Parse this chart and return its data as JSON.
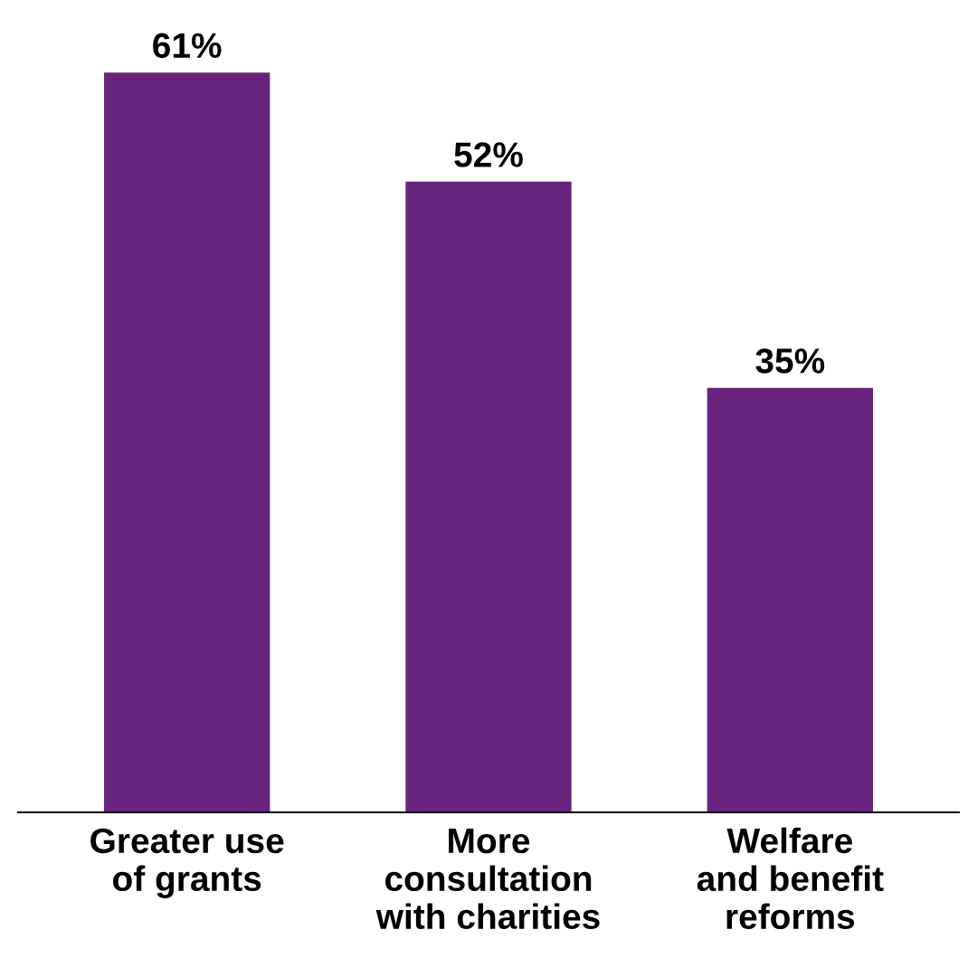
{
  "chart_data": {
    "type": "bar",
    "categories": [
      "Greater use\nof grants",
      "More\nconsultation\nwith charities",
      "Welfare\nand benefit\nreforms"
    ],
    "values": [
      61,
      52,
      35
    ],
    "value_labels": [
      "61%",
      "52%",
      "35%"
    ],
    "color": "#68237d",
    "grid": false,
    "legend": false
  }
}
